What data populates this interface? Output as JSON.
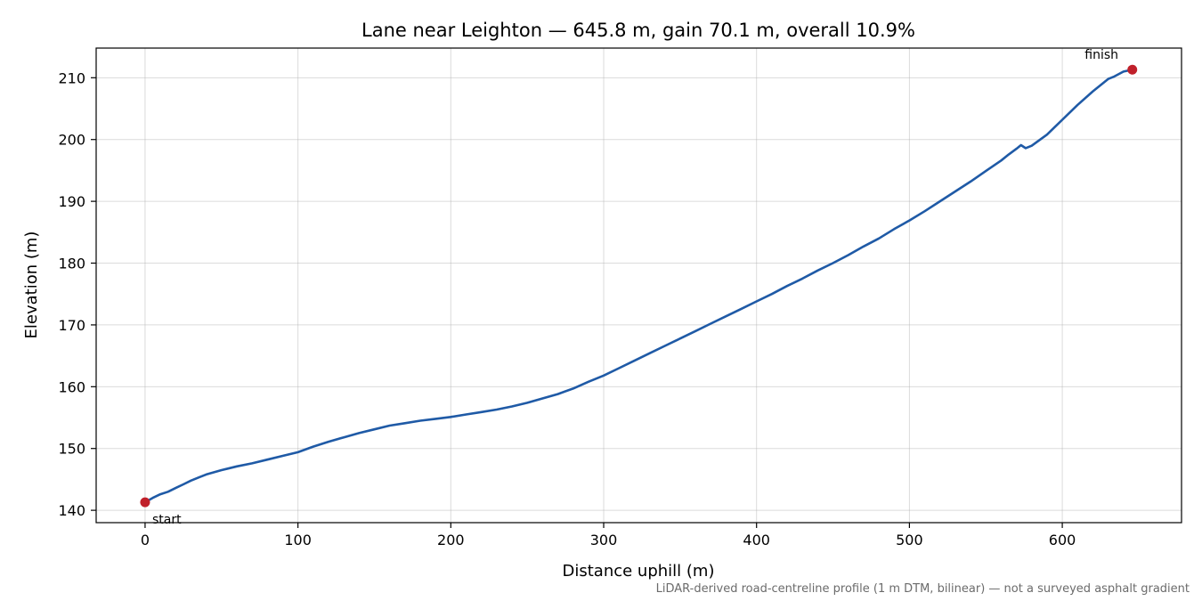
{
  "chart_data": {
    "type": "line",
    "title": "Lane near Leighton — 645.8 m, gain 70.1 m, overall 10.9%",
    "xlabel": "Distance uphill (m)",
    "ylabel": "Elevation (m)",
    "xlim": [
      -32,
      678
    ],
    "ylim": [
      138,
      214.8
    ],
    "xticks": [
      0,
      100,
      200,
      300,
      400,
      500,
      600
    ],
    "yticks": [
      140,
      150,
      160,
      170,
      180,
      190,
      200,
      210
    ],
    "grid": true,
    "line_color": "#1f5aa6",
    "marker_color": "#c0202a",
    "series": [
      {
        "x": [
          0,
          5,
          10,
          15,
          20,
          25,
          30,
          35,
          40,
          50,
          60,
          70,
          80,
          90,
          100,
          110,
          120,
          130,
          140,
          150,
          160,
          170,
          180,
          190,
          200,
          210,
          220,
          230,
          240,
          250,
          260,
          270,
          280,
          290,
          300,
          310,
          320,
          330,
          340,
          350,
          360,
          370,
          380,
          390,
          400,
          410,
          420,
          430,
          440,
          450,
          460,
          470,
          480,
          490,
          500,
          510,
          520,
          530,
          540,
          550,
          560,
          565,
          570,
          573,
          576,
          580,
          585,
          590,
          595,
          600,
          610,
          620,
          630,
          634,
          640,
          645.8
        ],
        "y": [
          141.3,
          142.0,
          142.6,
          143.0,
          143.6,
          144.2,
          144.8,
          145.3,
          145.8,
          146.5,
          147.1,
          147.6,
          148.2,
          148.8,
          149.4,
          150.3,
          151.1,
          151.8,
          152.5,
          153.1,
          153.7,
          154.1,
          154.5,
          154.8,
          155.1,
          155.5,
          155.9,
          156.3,
          156.8,
          157.4,
          158.1,
          158.8,
          159.7,
          160.8,
          161.8,
          163.0,
          164.2,
          165.4,
          166.6,
          167.8,
          169.0,
          170.2,
          171.4,
          172.6,
          173.8,
          175.0,
          176.3,
          177.5,
          178.8,
          180.0,
          181.3,
          182.7,
          184.0,
          185.5,
          186.9,
          188.4,
          190.0,
          191.6,
          193.2,
          194.9,
          196.6,
          197.6,
          198.5,
          199.1,
          198.6,
          199.0,
          199.9,
          200.8,
          202.0,
          203.2,
          205.6,
          207.8,
          209.8,
          210.2,
          211.0,
          211.3
        ]
      }
    ],
    "annotations": {
      "start": {
        "label": "start",
        "x": 0,
        "y": 141.3
      },
      "finish": {
        "label": "finish",
        "x": 645.8,
        "y": 211.3
      }
    },
    "footnote": "LiDAR-derived road-centreline profile (1 m DTM, bilinear) — not a surveyed asphalt gradient"
  }
}
